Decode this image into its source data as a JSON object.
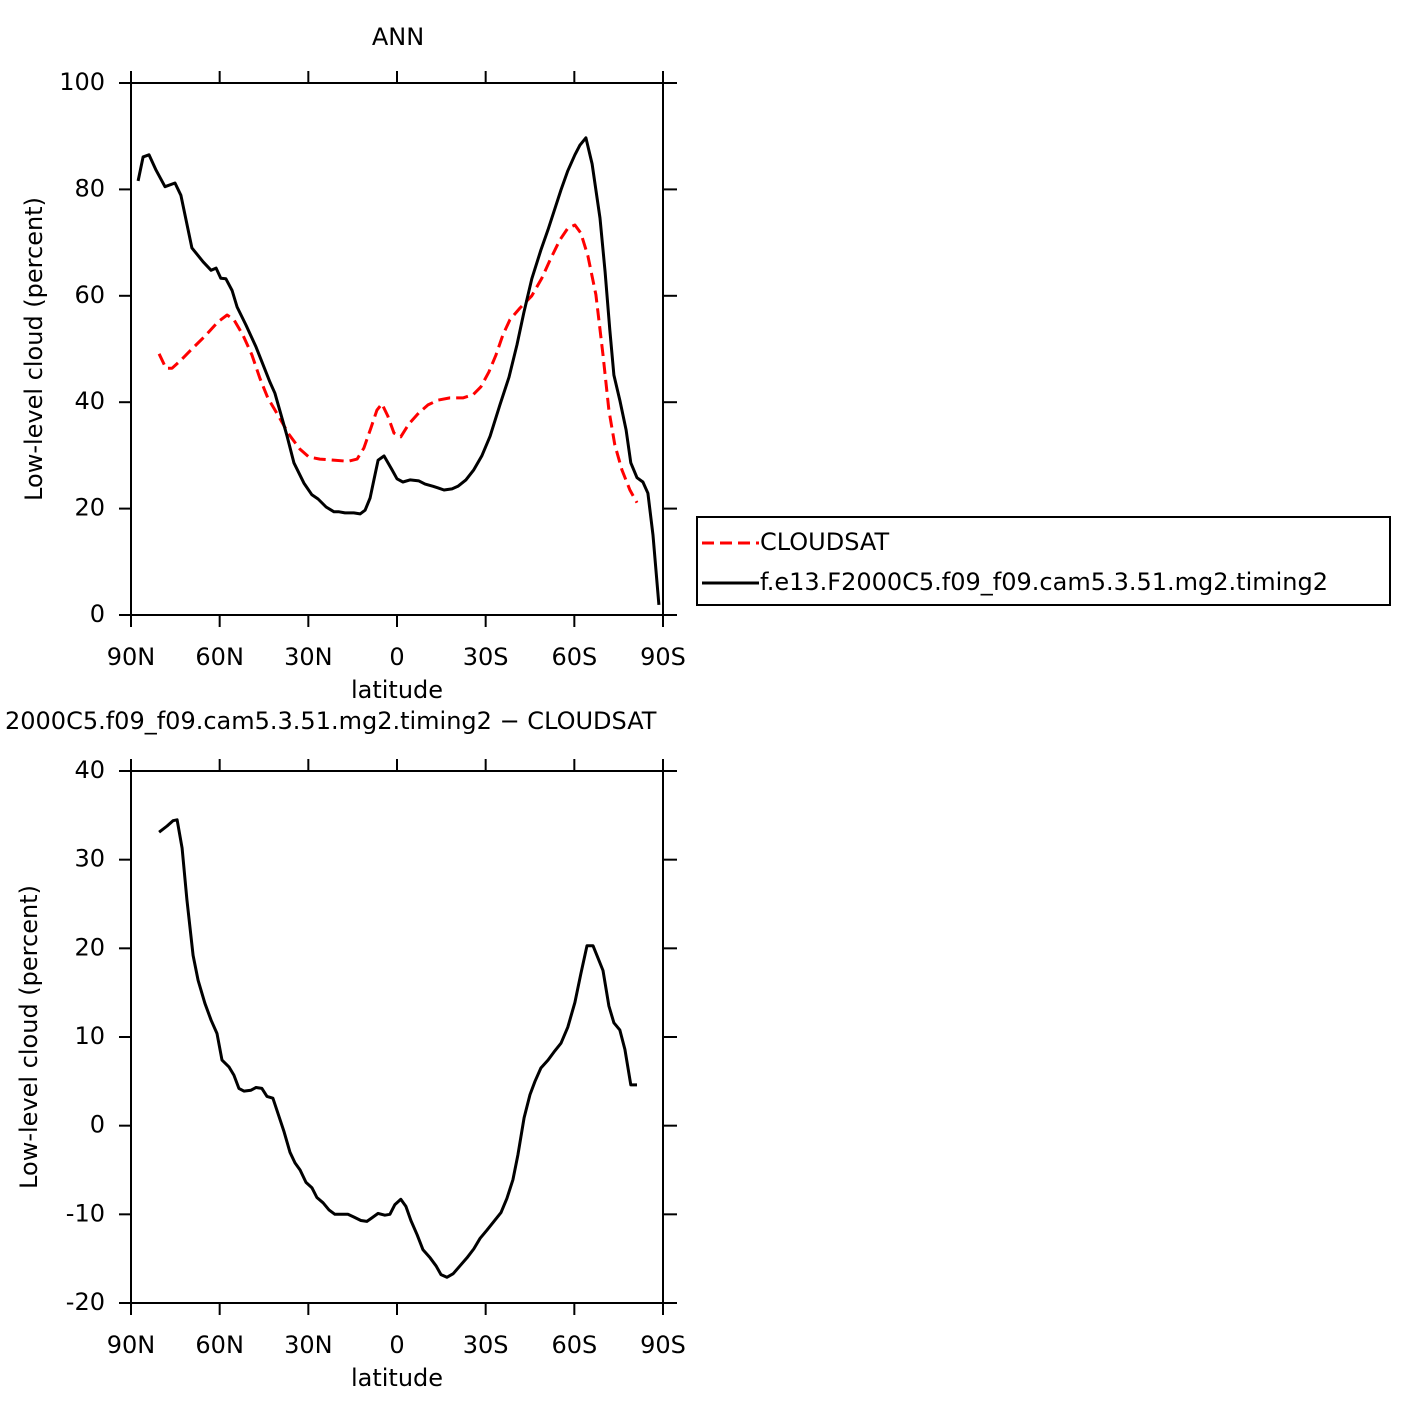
{
  "chart_data": [
    {
      "type": "line",
      "title": "ANN",
      "xlabel": "latitude",
      "ylabel": "Low-level cloud (percent)",
      "xlim": [
        90,
        -90
      ],
      "ylim": [
        0,
        100
      ],
      "xticks": [
        {
          "value": 90,
          "label": "90N"
        },
        {
          "value": 60,
          "label": "60N"
        },
        {
          "value": 30,
          "label": "30N"
        },
        0,
        {
          "value": -30,
          "label": "30S"
        },
        {
          "value": -60,
          "label": "60S"
        },
        {
          "value": -90,
          "label": "90S"
        }
      ],
      "yticks": [
        0,
        20,
        40,
        60,
        80,
        100
      ],
      "legend": "outside-right",
      "series": [
        {
          "name": "CLOUDSAT",
          "color": "#ff0000",
          "linestyle": "dashed",
          "x": [
            80.5,
            78.2,
            76.1,
            73.1,
            69.4,
            65.0,
            60.6,
            57.5,
            55.2,
            52.1,
            49.1,
            46.4,
            43.7,
            40.3,
            36.6,
            32.9,
            29.8,
            26.1,
            21.0,
            16.6,
            13.5,
            11.2,
            8.8,
            6.8,
            5.1,
            3.1,
            1.0,
            -1.3,
            -4.0,
            -7.4,
            -10.5,
            -13.9,
            -17.9,
            -22.3,
            -25.7,
            -28.4,
            -31.1,
            -33.5,
            -35.8,
            -38.2,
            -41.6,
            -45.6,
            -49.0,
            -52.1,
            -55.1,
            -57.8,
            -60.2,
            -62.2,
            -64.6,
            -67.3,
            -69.7,
            -71.7,
            -73.7,
            -76.1,
            -78.8,
            -81.2
          ],
          "values": [
            49.1,
            46.4,
            46.4,
            47.9,
            50,
            52.4,
            55.1,
            56.4,
            55.5,
            52.6,
            48.9,
            44.5,
            40.8,
            37.6,
            34,
            31.2,
            29.7,
            29.3,
            29.1,
            28.9,
            29.3,
            31.4,
            35.2,
            38.5,
            39.7,
            37.4,
            34.2,
            33.5,
            35.9,
            38.0,
            39.5,
            40.4,
            40.8,
            40.8,
            41.4,
            42.9,
            45.7,
            48.9,
            52.6,
            55.5,
            57.7,
            60,
            63.3,
            67.1,
            70.5,
            72.7,
            73.3,
            71.8,
            67.5,
            60.2,
            48.9,
            38.5,
            32,
            27.3,
            23.5,
            21.1
          ]
        },
        {
          "name": "f.e13.F2000C5.f09_f09.cam5.3.51.mg2.timing2",
          "color": "#000000",
          "linestyle": "solid",
          "x": [
            87.6,
            85.9,
            83.9,
            81.5,
            78.5,
            75.1,
            73.1,
            69.4,
            65.6,
            62.9,
            61.2,
            59.6,
            57.9,
            55.8,
            54.1,
            51.1,
            47.7,
            45.7,
            43.0,
            41.3,
            38.9,
            37.2,
            34.9,
            31.5,
            28.8,
            26.7,
            24.0,
            21.3,
            19.6,
            17.6,
            14.6,
            12.5,
            10.8,
            9.1,
            7.8,
            6.4,
            4.4,
            1.7,
            0.0,
            -2.0,
            -4.4,
            -7.4,
            -9.5,
            -12.2,
            -13.9,
            -15.9,
            -18.6,
            -20.6,
            -23.3,
            -26.0,
            -28.7,
            -31.5,
            -34.8,
            -37.9,
            -40.6,
            -42.9,
            -45.6,
            -48.7,
            -51.1,
            -53.1,
            -55.5,
            -57.8,
            -60.2,
            -61.9,
            -63.9,
            -66.0,
            -68.7,
            -70.4,
            -72.0,
            -73.4,
            -75.4,
            -77.5,
            -79.1,
            -81.2,
            -83.2,
            -84.9,
            -86.6,
            -88.6
          ],
          "values": [
            81.6,
            86.1,
            86.5,
            83.6,
            80.5,
            81.2,
            78.9,
            69,
            66.4,
            64.8,
            65.2,
            63.3,
            63.2,
            61,
            57.9,
            54.5,
            50.4,
            47.6,
            43.8,
            41.7,
            37,
            33.6,
            28.6,
            24.8,
            22.6,
            21.8,
            20.3,
            19.4,
            19.4,
            19.2,
            19.2,
            19.0,
            19.7,
            22.0,
            25.4,
            29.1,
            29.9,
            27.3,
            25.6,
            25.0,
            25.4,
            25.2,
            24.6,
            24.2,
            23.9,
            23.5,
            23.7,
            24.2,
            25.4,
            27.3,
            29.9,
            33.6,
            39.5,
            44.7,
            50.8,
            56.8,
            63.2,
            68.6,
            72.4,
            75.8,
            79.9,
            83.5,
            86.5,
            88.3,
            89.7,
            84.8,
            74.6,
            64.5,
            53.6,
            45.1,
            40.4,
            34.8,
            28.6,
            25.8,
            25.0,
            22.9,
            15.0,
            1.9
          ]
        }
      ]
    },
    {
      "type": "line",
      "title": "2000C5.f09_f09.cam5.3.51.mg2.timing2 − CLOUDSAT",
      "xlabel": "latitude",
      "ylabel": "Low-level cloud (percent)",
      "xlim": [
        90,
        -90
      ],
      "ylim": [
        -20,
        40
      ],
      "xticks": [
        {
          "value": 90,
          "label": "90N"
        },
        {
          "value": 60,
          "label": "60N"
        },
        {
          "value": 30,
          "label": "30N"
        },
        0,
        {
          "value": -30,
          "label": "30S"
        },
        {
          "value": -60,
          "label": "60S"
        },
        {
          "value": -90,
          "label": "90S"
        }
      ],
      "yticks": [
        -20,
        -10,
        0,
        10,
        20,
        30,
        40
      ],
      "color": "#000000",
      "x": [
        80.5,
        77.8,
        75.8,
        74.4,
        72.7,
        71.1,
        69.0,
        67.3,
        65.0,
        62.9,
        60.9,
        59.2,
        56.8,
        55.2,
        53.5,
        51.8,
        49.4,
        47.7,
        45.7,
        44.0,
        42.0,
        39.9,
        38.2,
        36.2,
        34.5,
        32.8,
        30.8,
        28.8,
        27.1,
        25.0,
        23.0,
        21.0,
        19.0,
        16.6,
        14.6,
        12.2,
        10.2,
        8.5,
        6.4,
        4.1,
        2.4,
        0.7,
        -1.3,
        -3.0,
        -4.7,
        -6.8,
        -8.8,
        -11.2,
        -13.2,
        -14.9,
        -16.9,
        -19.0,
        -21.3,
        -23.7,
        -26.0,
        -28.1,
        -30.4,
        -32.8,
        -35.2,
        -37.2,
        -39.2,
        -40.9,
        -43.0,
        -45.0,
        -46.7,
        -48.7,
        -51.1,
        -53.1,
        -55.5,
        -57.8,
        -60.2,
        -62.2,
        -64.3,
        -66.3,
        -68.0,
        -69.7,
        -71.7,
        -73.4,
        -75.4,
        -77.1,
        -79.1,
        -81.2
      ],
      "values": [
        33.1,
        33.8,
        34.4,
        34.5,
        31.3,
        25.5,
        19.2,
        16.4,
        13.8,
        11.9,
        10.4,
        7.4,
        6.6,
        5.7,
        4.2,
        3.9,
        4.0,
        4.3,
        4.2,
        3.3,
        3.1,
        1.0,
        -0.7,
        -3.0,
        -4.2,
        -5.0,
        -6.4,
        -7.0,
        -8.1,
        -8.7,
        -9.5,
        -10.0,
        -10.0,
        -10.0,
        -10.3,
        -10.7,
        -10.8,
        -10.4,
        -9.9,
        -10.1,
        -10.0,
        -8.9,
        -8.3,
        -9.1,
        -10.7,
        -12.3,
        -14.0,
        -14.9,
        -15.8,
        -16.8,
        -17.1,
        -16.7,
        -15.8,
        -14.9,
        -13.9,
        -12.7,
        -11.8,
        -10.8,
        -9.8,
        -8.2,
        -6.1,
        -3.3,
        0.9,
        3.5,
        5.0,
        6.5,
        7.4,
        8.3,
        9.3,
        11.1,
        13.9,
        17.1,
        20.3,
        20.3,
        18.9,
        17.5,
        13.5,
        11.6,
        10.8,
        8.6,
        4.6,
        4.6
      ]
    }
  ]
}
